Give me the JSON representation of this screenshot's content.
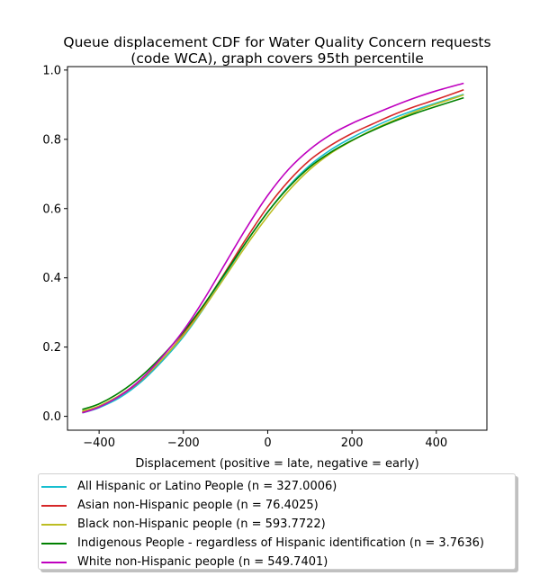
{
  "chart_data": {
    "type": "line",
    "title_line1": "Queue displacement CDF for Water Quality Concern  requests",
    "title_line2": "(code WCA), graph covers 95th percentile",
    "xlabel": "Displacement (positive = late, negative = early)",
    "ylabel": "",
    "xlim": [
      -475,
      520
    ],
    "ylim": [
      -0.04,
      1.01
    ],
    "xticks": [
      -400,
      -200,
      0,
      200,
      400
    ],
    "yticks": [
      0.0,
      0.2,
      0.4,
      0.6,
      0.8,
      1.0
    ],
    "x": [
      -440,
      -400,
      -350,
      -300,
      -250,
      -200,
      -150,
      -100,
      -50,
      0,
      50,
      100,
      150,
      200,
      250,
      300,
      350,
      400,
      465
    ],
    "series": [
      {
        "name": "All Hispanic or Latino People (n = 327.0006)",
        "color": "#17becf",
        "values": [
          0.01,
          0.025,
          0.055,
          0.1,
          0.16,
          0.23,
          0.315,
          0.41,
          0.505,
          0.59,
          0.665,
          0.725,
          0.77,
          0.805,
          0.835,
          0.862,
          0.885,
          0.905,
          0.93
        ]
      },
      {
        "name": "Asian non-Hispanic people (n = 76.4025)",
        "color": "#d62728",
        "values": [
          0.012,
          0.028,
          0.06,
          0.105,
          0.165,
          0.237,
          0.323,
          0.418,
          0.515,
          0.605,
          0.68,
          0.74,
          0.783,
          0.817,
          0.845,
          0.872,
          0.895,
          0.915,
          0.943
        ]
      },
      {
        "name": "Black non-Hispanic people (n = 593.7722)",
        "color": "#bcbd22",
        "values": [
          0.015,
          0.03,
          0.062,
          0.106,
          0.165,
          0.234,
          0.316,
          0.405,
          0.495,
          0.578,
          0.652,
          0.713,
          0.76,
          0.796,
          0.828,
          0.855,
          0.88,
          0.902,
          0.928
        ]
      },
      {
        "name": "Indigenous People - regardless of Hispanic identification (n = 3.7636)",
        "color": "#008000",
        "values": [
          0.02,
          0.036,
          0.07,
          0.116,
          0.175,
          0.244,
          0.325,
          0.415,
          0.505,
          0.59,
          0.662,
          0.72,
          0.763,
          0.797,
          0.826,
          0.852,
          0.875,
          0.895,
          0.92
        ]
      },
      {
        "name": "White non-Hispanic people (n = 549.7401)",
        "color": "#bf00bf",
        "values": [
          0.01,
          0.027,
          0.06,
          0.108,
          0.172,
          0.248,
          0.34,
          0.443,
          0.545,
          0.638,
          0.714,
          0.771,
          0.814,
          0.846,
          0.872,
          0.897,
          0.92,
          0.94,
          0.962
        ]
      }
    ],
    "grid": false,
    "legend_position": "below"
  }
}
